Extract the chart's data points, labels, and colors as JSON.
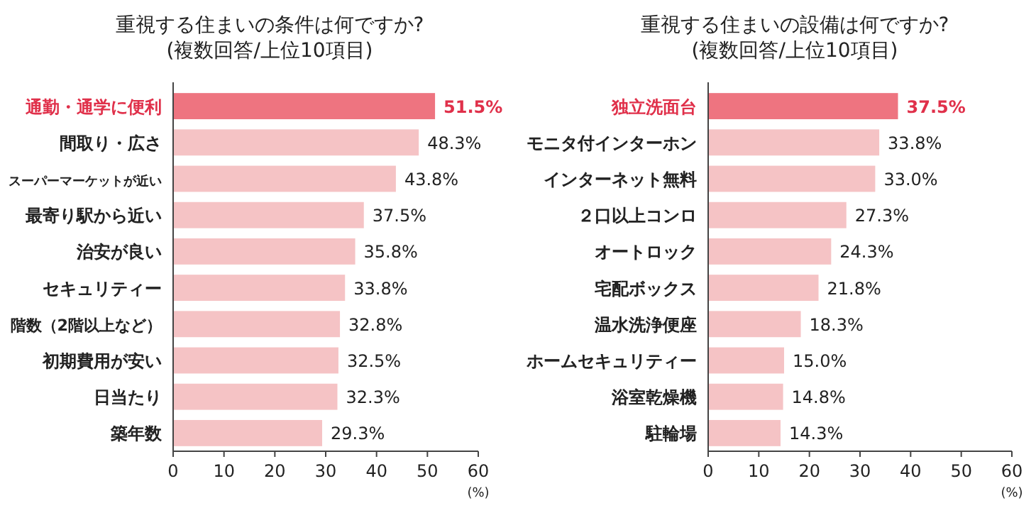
{
  "chart_data": [
    {
      "type": "bar",
      "orientation": "horizontal",
      "title": "重視する住まいの条件は何ですか?\n(複数回答/上位10項目)",
      "categories": [
        "通勤・通学に便利",
        "間取り・広さ",
        "スーパーマーケットが近い",
        "最寄り駅から近い",
        "治安が良い",
        "セキュリティー",
        "階数（2階以上など）",
        "初期費用が安い",
        "日当たり",
        "築年数"
      ],
      "values": [
        51.5,
        48.3,
        43.8,
        37.5,
        35.8,
        33.8,
        32.8,
        32.5,
        32.3,
        29.3
      ],
      "colors": [
        "#ee7480",
        "#f5c3c5",
        "#f5c3c5",
        "#f5c3c5",
        "#f5c3c5",
        "#f5c3c5",
        "#f5c3c5",
        "#f5c3c5",
        "#f5c3c5",
        "#f5c3c5"
      ],
      "value_labels": [
        "51.5%",
        "48.3%",
        "43.8%",
        "37.5%",
        "35.8%",
        "33.8%",
        "32.8%",
        "32.5%",
        "32.3%",
        "29.3%"
      ],
      "xlim": [
        0,
        60
      ],
      "xticks": [
        0,
        10,
        20,
        30,
        40,
        50,
        60
      ],
      "xlabel": "(%)",
      "grid": false
    },
    {
      "type": "bar",
      "orientation": "horizontal",
      "title": "重視する住まいの設備は何ですか?\n(複数回答/上位10項目)",
      "categories": [
        "独立洗面台",
        "モニタ付インターホン",
        "インターネット無料",
        "２口以上コンロ",
        "オートロック",
        "宅配ボックス",
        "温水洗浄便座",
        "ホームセキュリティー",
        "浴室乾燥機",
        "駐輪場"
      ],
      "values": [
        37.5,
        33.8,
        33.0,
        27.3,
        24.3,
        21.8,
        18.3,
        15.0,
        14.8,
        14.3
      ],
      "colors": [
        "#ee7480",
        "#f5c3c5",
        "#f5c3c5",
        "#f5c3c5",
        "#f5c3c5",
        "#f5c3c5",
        "#f5c3c5",
        "#f5c3c5",
        "#f5c3c5",
        "#f5c3c5"
      ],
      "value_labels": [
        "37.5%",
        "33.8%",
        "33.0%",
        "27.3%",
        "24.3%",
        "21.8%",
        "18.3%",
        "15.0%",
        "14.8%",
        "14.3%"
      ],
      "xlim": [
        0,
        60
      ],
      "xticks": [
        0,
        10,
        20,
        30,
        40,
        50,
        60
      ],
      "xlabel": "(%)",
      "grid": false
    }
  ]
}
